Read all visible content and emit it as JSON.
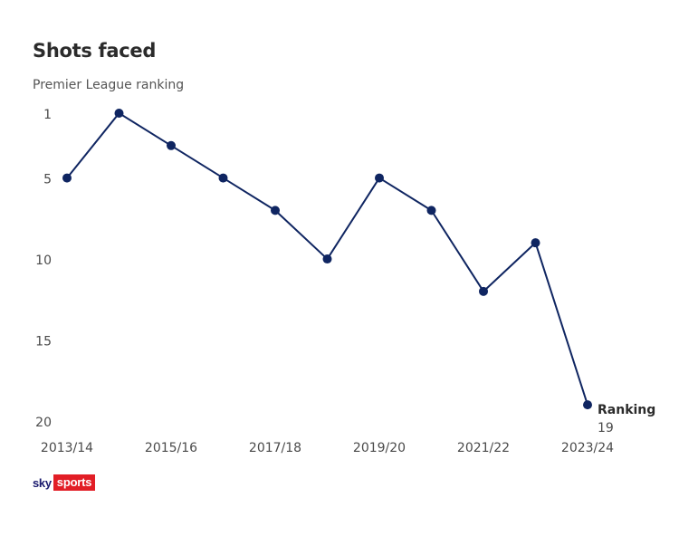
{
  "chart_data": {
    "type": "line",
    "title": "Shots faced",
    "subtitle": "Premier League ranking",
    "y_reversed": true,
    "ylim": [
      1,
      20
    ],
    "yticks": [
      1,
      5,
      10,
      15,
      20
    ],
    "x": [
      "2013/14",
      "2014/15",
      "2015/16",
      "2016/17",
      "2017/18",
      "2018/19",
      "2019/20",
      "2020/21",
      "2021/22",
      "2022/23",
      "2023/24"
    ],
    "xtick_labels": [
      "2013/14",
      "2015/16",
      "2017/18",
      "2019/20",
      "2021/22",
      "2023/24"
    ],
    "series": [
      {
        "values": [
          5,
          1,
          3,
          5,
          7,
          10,
          5,
          7,
          12,
          9,
          19
        ],
        "color": "#0f2561"
      }
    ],
    "annotation": {
      "label": "Ranking",
      "value": "19"
    }
  },
  "brand": {
    "sky": "sky",
    "sports": "sports",
    "sports_bg": "#e21e26"
  }
}
